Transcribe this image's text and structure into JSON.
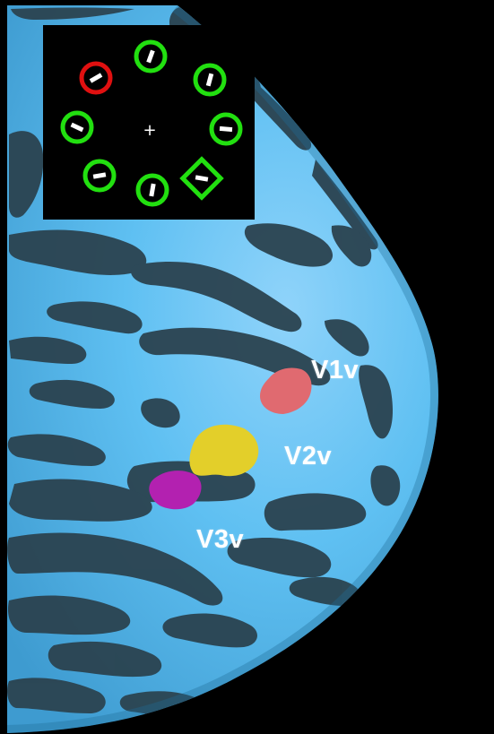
{
  "inset": {
    "fixation_glyph": "+",
    "stimuli": [
      {
        "shape": "circle",
        "color": "#e01010",
        "bar_angle_deg": -60
      },
      {
        "shape": "circle",
        "color": "#22e010",
        "bar_angle_deg": -70
      },
      {
        "shape": "circle",
        "color": "#22e010",
        "bar_angle_deg": 75
      },
      {
        "shape": "circle",
        "color": "#22e010",
        "bar_angle_deg": 15
      },
      {
        "shape": "circle",
        "color": "#22e010",
        "bar_angle_deg": 25
      },
      {
        "shape": "circle",
        "color": "#22e010",
        "bar_angle_deg": -80
      },
      {
        "shape": "circle",
        "color": "#22e010",
        "bar_angle_deg": 80
      },
      {
        "shape": "diamond",
        "color": "#22e010",
        "bar_angle_deg": 10
      }
    ]
  },
  "regions": [
    {
      "label": "V1v",
      "color": "#e06a70"
    },
    {
      "label": "V2v",
      "color": "#e3cf2a"
    },
    {
      "label": "V3v",
      "color": "#b321b0"
    }
  ],
  "colors": {
    "gyri": "#5bbcf0",
    "sulci": "#2b4350",
    "background": "#000000"
  }
}
